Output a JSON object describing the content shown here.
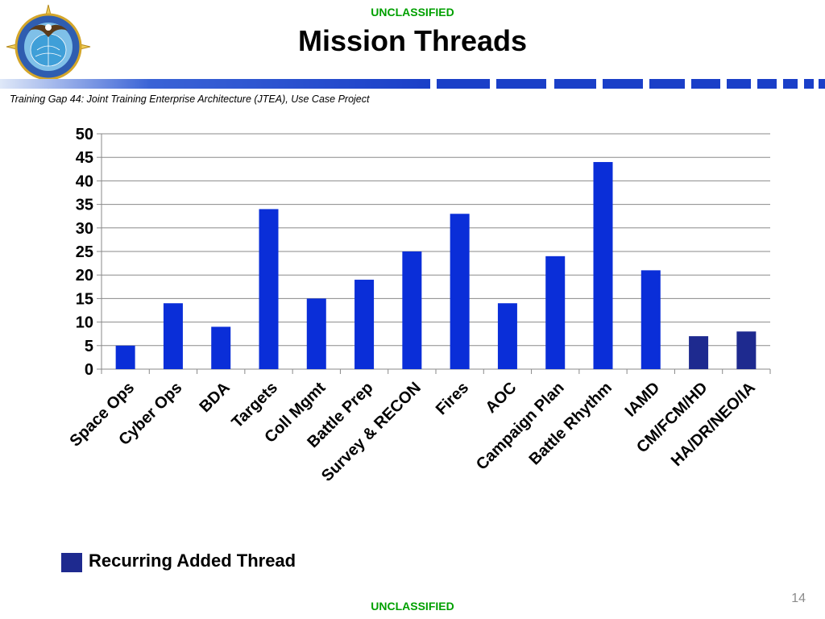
{
  "header": {
    "classification": "UNCLASSIFIED",
    "title": "Mission Threads",
    "subtitle": "Training Gap 44: Joint Training Enterprise Architecture (JTEA), Use Case Project"
  },
  "footer": {
    "classification": "UNCLASSIFIED",
    "page_number": "14"
  },
  "logo": {
    "icon": "us-pacific-command-seal-icon"
  },
  "colors": {
    "classification": "#00a000",
    "bar": "#0a2ed8",
    "recurring_bar": "#1e2a8f",
    "banner": "#1a3fc8"
  },
  "legend": {
    "label": "Recurring Added Thread",
    "color": "#1e2a8f"
  },
  "chart_data": {
    "type": "bar",
    "categories": [
      "Space Ops",
      "Cyber Ops",
      "BDA",
      "Targets",
      "Coll Mgmt",
      "Battle Prep",
      "Survey & RECON",
      "Fires",
      "AOC",
      "Campaign Plan",
      "Battle Rhythm",
      "IAMD",
      "CM/FCM/HD",
      "HA/DR/NEO/IA"
    ],
    "values": [
      5,
      14,
      9,
      34,
      15,
      19,
      25,
      33,
      14,
      24,
      44,
      21,
      7,
      8
    ],
    "recurring": [
      false,
      false,
      false,
      false,
      false,
      false,
      false,
      false,
      false,
      false,
      false,
      false,
      true,
      true
    ],
    "ylim": [
      0,
      50
    ],
    "yticks": [
      0,
      5,
      10,
      15,
      20,
      25,
      30,
      35,
      40,
      45,
      50
    ],
    "grid": true,
    "legend_position": "bottom-left"
  }
}
